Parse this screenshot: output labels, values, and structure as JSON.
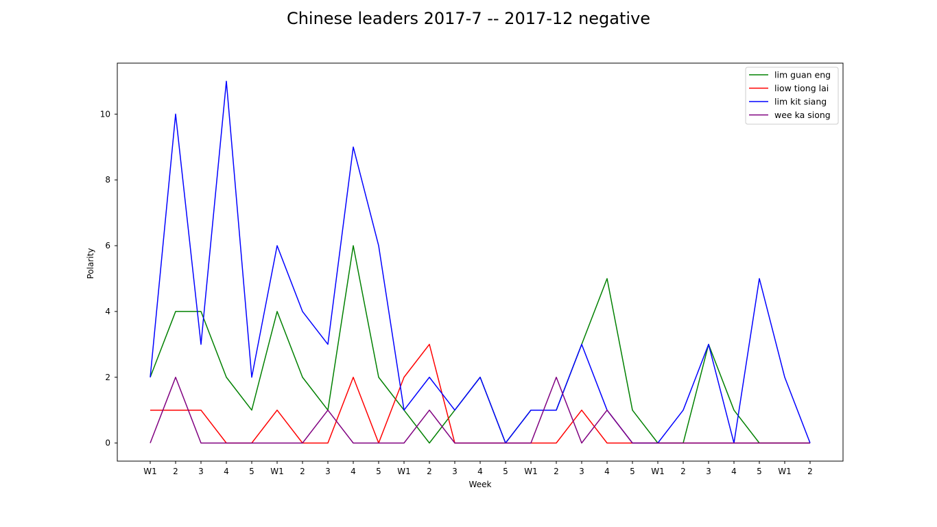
{
  "chart_data": {
    "type": "line",
    "title": "Chinese leaders 2017-7 -- 2017-12 negative",
    "xlabel": "Week",
    "ylabel": "Polarity",
    "categories": [
      "W1",
      "2",
      "3",
      "4",
      "5",
      "W1",
      "2",
      "3",
      "4",
      "5",
      "W1",
      "2",
      "3",
      "4",
      "5",
      "W1",
      "2",
      "3",
      "4",
      "5",
      "W1",
      "2",
      "3",
      "4",
      "5",
      "W1",
      "2"
    ],
    "yticks": [
      0,
      2,
      4,
      6,
      8,
      10
    ],
    "ylim": [
      -0.55,
      11.55
    ],
    "grid": false,
    "legend_position": "top-right",
    "series": [
      {
        "name": "lim guan eng",
        "color": "#008000",
        "values": [
          2,
          4,
          4,
          2,
          1,
          4,
          2,
          1,
          6,
          2,
          1,
          0,
          1,
          2,
          0,
          1,
          1,
          3,
          5,
          1,
          0,
          0,
          3,
          1,
          0,
          0,
          0
        ]
      },
      {
        "name": "liow tiong lai",
        "color": "#ff0000",
        "values": [
          1,
          1,
          1,
          0,
          0,
          1,
          0,
          0,
          2,
          0,
          2,
          3,
          0,
          0,
          0,
          0,
          0,
          1,
          0,
          0,
          0,
          0,
          0,
          0,
          0,
          0,
          0
        ]
      },
      {
        "name": "lim kit siang",
        "color": "#0000ff",
        "values": [
          2,
          10,
          3,
          11,
          2,
          6,
          4,
          3,
          9,
          6,
          1,
          2,
          1,
          2,
          0,
          1,
          1,
          3,
          1,
          0,
          0,
          1,
          3,
          0,
          5,
          2,
          0
        ]
      },
      {
        "name": "wee ka siong",
        "color": "#800080",
        "values": [
          0,
          2,
          0,
          0,
          0,
          0,
          0,
          1,
          0,
          0,
          0,
          1,
          0,
          0,
          0,
          0,
          2,
          0,
          1,
          0,
          0,
          0,
          0,
          0,
          0,
          0,
          0
        ]
      }
    ]
  }
}
